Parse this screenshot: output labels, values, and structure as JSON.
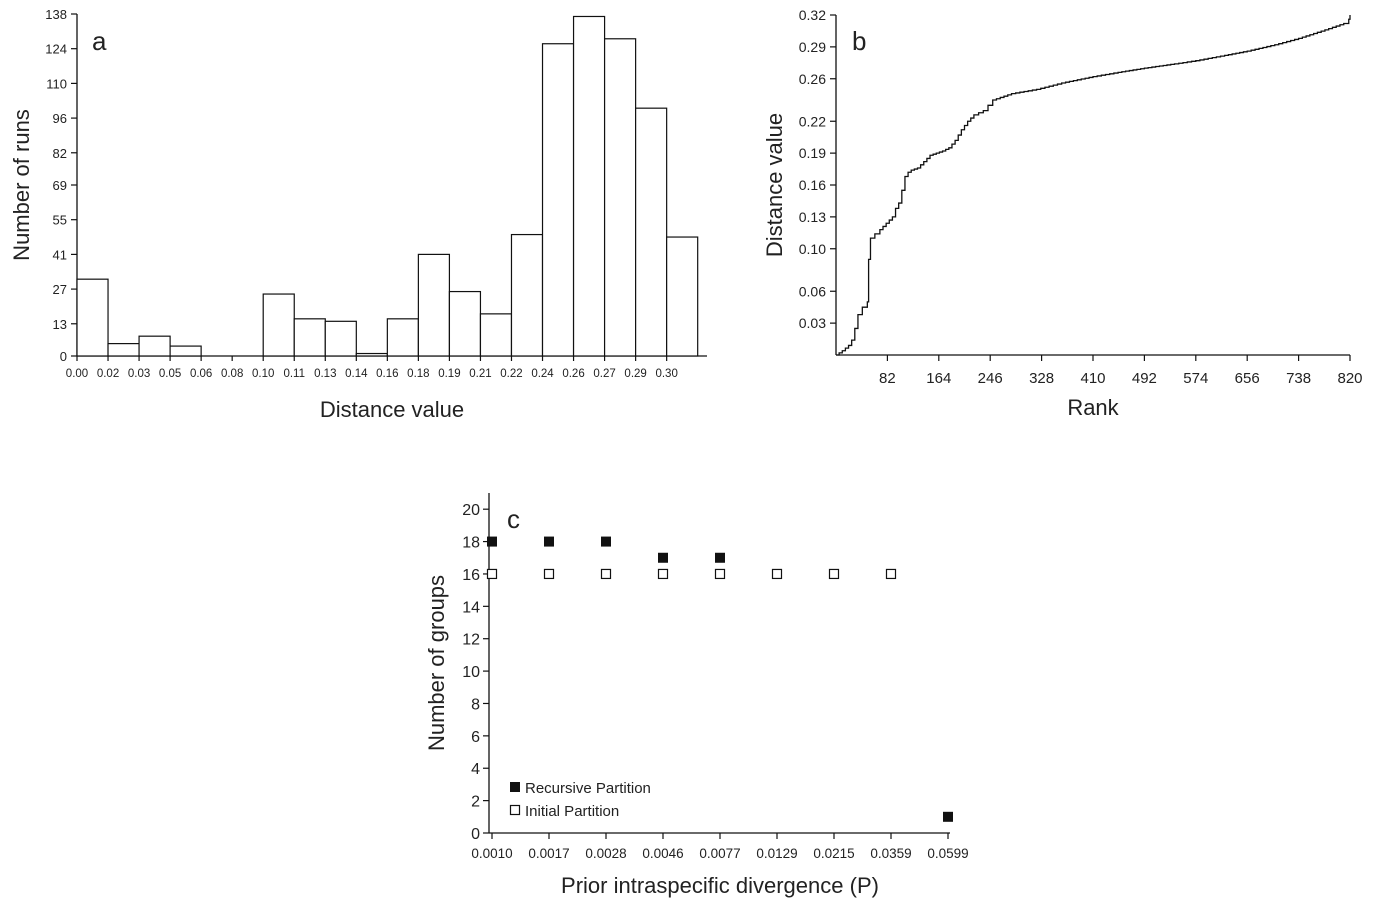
{
  "chart_data": [
    {
      "panel": "a",
      "type": "bar",
      "xlabel": "Distance value",
      "ylabel": "Number of runs",
      "ylim": [
        0,
        138
      ],
      "y_ticks": [
        "0",
        "13",
        "27",
        "41",
        "55",
        "69",
        "82",
        "96",
        "110",
        "124",
        "138"
      ],
      "x_ticks": [
        "0.00",
        "0.02",
        "0.03",
        "0.05",
        "0.06",
        "0.08",
        "0.10",
        "0.11",
        "0.13",
        "0.14",
        "0.16",
        "0.18",
        "0.19",
        "0.21",
        "0.22",
        "0.24",
        "0.26",
        "0.27",
        "0.29",
        "0.30"
      ],
      "values": [
        31,
        5,
        8,
        4,
        0,
        0,
        25,
        15,
        14,
        1,
        15,
        41,
        26,
        17,
        49,
        126,
        137,
        128,
        100,
        48
      ]
    },
    {
      "panel": "b",
      "type": "line",
      "xlabel": "Rank",
      "ylabel": "Distance value",
      "xlim": [
        0,
        820
      ],
      "ylim": [
        0,
        0.32
      ],
      "x_ticks": [
        "82",
        "164",
        "246",
        "328",
        "410",
        "492",
        "574",
        "656",
        "738",
        "820"
      ],
      "y_ticks": [
        "0.03",
        "0.06",
        "0.10",
        "0.13",
        "0.16",
        "0.19",
        "0.22",
        "0.26",
        "0.29",
        "0.32"
      ],
      "x": [
        0,
        10,
        20,
        25,
        30,
        35,
        42,
        50,
        52,
        55,
        62,
        70,
        80,
        90,
        95,
        100,
        105,
        110,
        115,
        120,
        130,
        140,
        150,
        160,
        170,
        180,
        190,
        200,
        210,
        220,
        235,
        250,
        280,
        320,
        360,
        410,
        450,
        492,
        540,
        574,
        620,
        656,
        700,
        738,
        780,
        810,
        818,
        820
      ],
      "y": [
        0.0,
        0.004,
        0.009,
        0.014,
        0.025,
        0.038,
        0.045,
        0.05,
        0.09,
        0.11,
        0.114,
        0.118,
        0.124,
        0.13,
        0.138,
        0.143,
        0.155,
        0.168,
        0.172,
        0.174,
        0.176,
        0.182,
        0.188,
        0.19,
        0.192,
        0.195,
        0.202,
        0.212,
        0.22,
        0.226,
        0.23,
        0.24,
        0.246,
        0.25,
        0.256,
        0.262,
        0.266,
        0.27,
        0.274,
        0.277,
        0.282,
        0.286,
        0.292,
        0.298,
        0.306,
        0.312,
        0.316,
        0.32
      ]
    },
    {
      "panel": "c",
      "type": "scatter",
      "xlabel": "Prior intraspecific divergence (P)",
      "ylabel": "Number of groups",
      "ylim": [
        0,
        21
      ],
      "categories": [
        "0.0010",
        "0.0017",
        "0.0028",
        "0.0046",
        "0.0077",
        "0.0129",
        "0.0215",
        "0.0359",
        "0.0599"
      ],
      "y_ticks": [
        "0",
        "2",
        "4",
        "6",
        "8",
        "10",
        "12",
        "14",
        "16",
        "18",
        "20"
      ],
      "series": [
        {
          "name": "Recursive Partition",
          "marker": "filled-square",
          "values": [
            18,
            18,
            18,
            17,
            17,
            null,
            null,
            null,
            1
          ]
        },
        {
          "name": "Initial Partition",
          "marker": "open-square",
          "values": [
            16,
            16,
            16,
            16,
            16,
            16,
            16,
            16,
            null
          ]
        }
      ]
    }
  ]
}
